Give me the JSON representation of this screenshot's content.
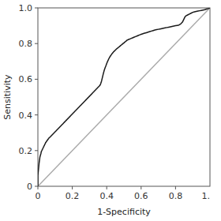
{
  "chart_data": {
    "type": "line",
    "title": "",
    "xlabel": "1-Specificity",
    "ylabel": "Sensitivity",
    "xlim": [
      0,
      1.0
    ],
    "ylim": [
      0,
      1.0
    ],
    "xticks": [
      0,
      0.2,
      0.4,
      0.6,
      0.8
    ],
    "yticks": [
      0,
      0.2,
      0.4,
      0.6,
      0.8,
      {
        "value": 1.0,
        "label": "1.0"
      }
    ],
    "grid": false,
    "annotations": [
      {
        "text": "1.",
        "x": 1.0
      }
    ],
    "series": [
      {
        "color": "#aaaaaa",
        "x": [
          0,
          1
        ],
        "values": [
          0,
          1
        ]
      },
      {
        "color": "#1a1a1a",
        "x": [
          0.0,
          0.0,
          0.003,
          0.005,
          0.007,
          0.01,
          0.012,
          0.015,
          0.018,
          0.02,
          0.023,
          0.025,
          0.028,
          0.03,
          0.033,
          0.035,
          0.038,
          0.04,
          0.043,
          0.045,
          0.048,
          0.05,
          0.053,
          0.055,
          0.058,
          0.06,
          0.063,
          0.065,
          0.07,
          0.075,
          0.08,
          0.085,
          0.09,
          0.095,
          0.1,
          0.105,
          0.11,
          0.115,
          0.12,
          0.125,
          0.13,
          0.135,
          0.14,
          0.145,
          0.15,
          0.155,
          0.16,
          0.165,
          0.17,
          0.175,
          0.18,
          0.185,
          0.19,
          0.195,
          0.2,
          0.205,
          0.21,
          0.215,
          0.22,
          0.225,
          0.23,
          0.235,
          0.24,
          0.245,
          0.25,
          0.255,
          0.26,
          0.265,
          0.27,
          0.275,
          0.28,
          0.285,
          0.29,
          0.295,
          0.3,
          0.305,
          0.31,
          0.315,
          0.32,
          0.325,
          0.33,
          0.335,
          0.34,
          0.345,
          0.35,
          0.355,
          0.36,
          0.365,
          0.37,
          0.375,
          0.38,
          0.385,
          0.39,
          0.395,
          0.4,
          0.405,
          0.41,
          0.415,
          0.42,
          0.425,
          0.43,
          0.435,
          0.44,
          0.445,
          0.45,
          0.455,
          0.46,
          0.465,
          0.47,
          0.475,
          0.48,
          0.485,
          0.49,
          0.495,
          0.5,
          0.505,
          0.51,
          0.515,
          0.52,
          0.525,
          0.53,
          0.535,
          0.54,
          0.545,
          0.55,
          0.555,
          0.56,
          0.565,
          0.57,
          0.575,
          0.58,
          0.585,
          0.59,
          0.595,
          0.6,
          0.61,
          0.62,
          0.63,
          0.64,
          0.65,
          0.66,
          0.67,
          0.68,
          0.69,
          0.7,
          0.71,
          0.72,
          0.73,
          0.74,
          0.75,
          0.76,
          0.77,
          0.78,
          0.79,
          0.8,
          0.81,
          0.82,
          0.83,
          0.84,
          0.845,
          0.85,
          0.855,
          0.86,
          0.87,
          0.88,
          0.89,
          0.9,
          0.91,
          0.92,
          0.93,
          0.94,
          0.95,
          0.96,
          0.97,
          0.98,
          0.99,
          1.0
        ],
        "values": [
          0.0,
          0.06,
          0.09,
          0.11,
          0.13,
          0.15,
          0.165,
          0.175,
          0.185,
          0.195,
          0.2,
          0.205,
          0.21,
          0.215,
          0.22,
          0.225,
          0.23,
          0.235,
          0.24,
          0.245,
          0.248,
          0.252,
          0.255,
          0.258,
          0.262,
          0.265,
          0.268,
          0.272,
          0.275,
          0.28,
          0.285,
          0.29,
          0.295,
          0.3,
          0.305,
          0.31,
          0.315,
          0.32,
          0.325,
          0.33,
          0.335,
          0.34,
          0.345,
          0.35,
          0.355,
          0.36,
          0.365,
          0.37,
          0.375,
          0.38,
          0.385,
          0.39,
          0.395,
          0.4,
          0.405,
          0.41,
          0.415,
          0.42,
          0.425,
          0.43,
          0.435,
          0.44,
          0.445,
          0.45,
          0.455,
          0.46,
          0.465,
          0.47,
          0.475,
          0.48,
          0.485,
          0.49,
          0.495,
          0.5,
          0.505,
          0.51,
          0.515,
          0.52,
          0.525,
          0.53,
          0.535,
          0.54,
          0.545,
          0.55,
          0.555,
          0.56,
          0.565,
          0.575,
          0.59,
          0.61,
          0.63,
          0.648,
          0.663,
          0.675,
          0.688,
          0.7,
          0.71,
          0.72,
          0.728,
          0.735,
          0.742,
          0.748,
          0.754,
          0.758,
          0.763,
          0.768,
          0.772,
          0.776,
          0.78,
          0.784,
          0.788,
          0.792,
          0.796,
          0.8,
          0.804,
          0.808,
          0.812,
          0.816,
          0.82,
          0.822,
          0.824,
          0.826,
          0.828,
          0.83,
          0.832,
          0.834,
          0.836,
          0.838,
          0.84,
          0.842,
          0.844,
          0.846,
          0.848,
          0.85,
          0.852,
          0.855,
          0.858,
          0.861,
          0.864,
          0.867,
          0.87,
          0.873,
          0.876,
          0.878,
          0.88,
          0.882,
          0.884,
          0.886,
          0.888,
          0.89,
          0.892,
          0.894,
          0.896,
          0.898,
          0.9,
          0.902,
          0.904,
          0.91,
          0.92,
          0.93,
          0.94,
          0.95,
          0.955,
          0.96,
          0.965,
          0.97,
          0.975,
          0.978,
          0.98,
          0.982,
          0.984,
          0.986,
          0.988,
          0.99,
          0.993,
          0.996,
          1.0
        ]
      }
    ]
  }
}
